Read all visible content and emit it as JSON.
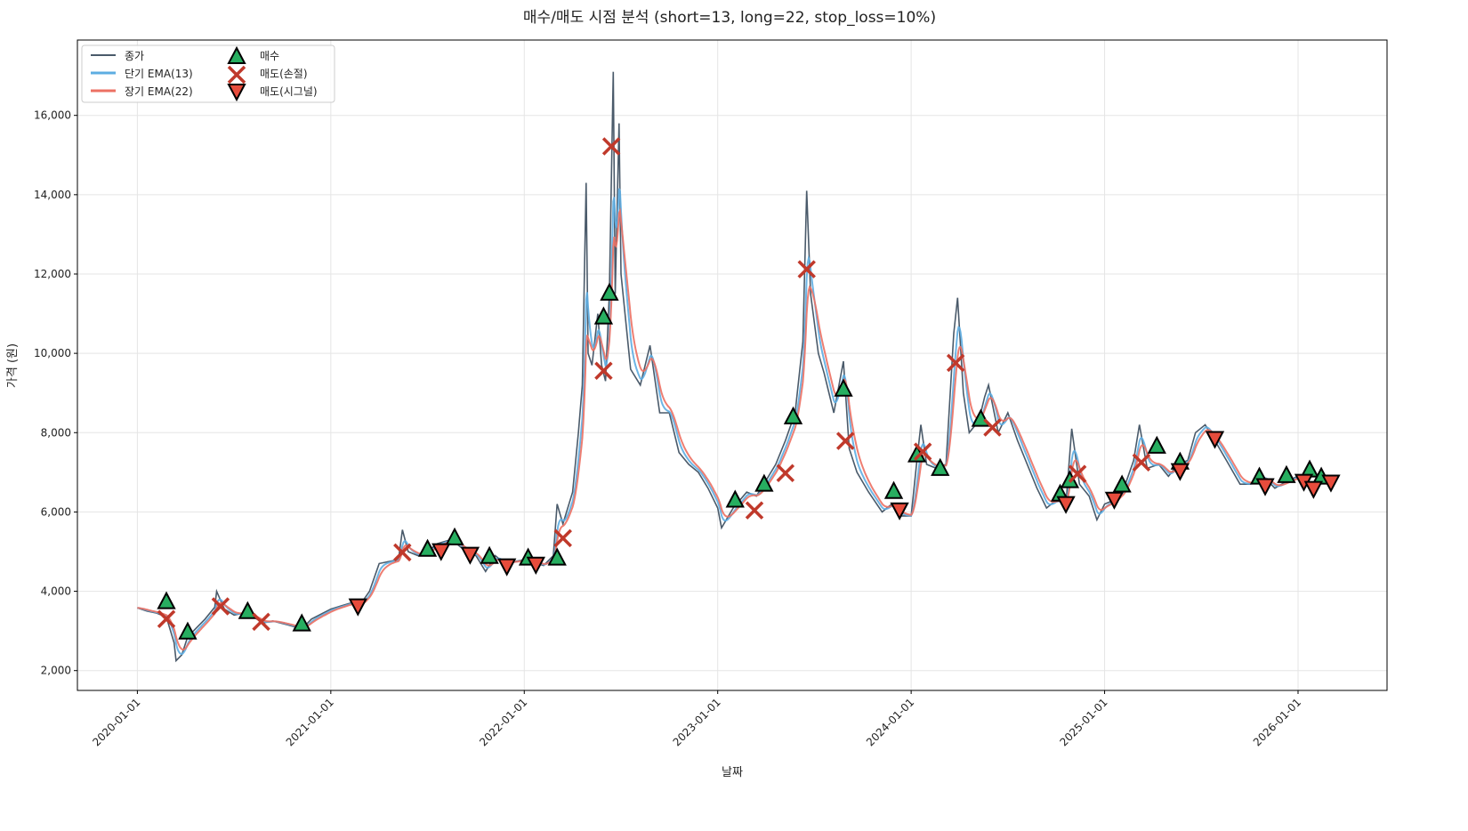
{
  "chart_data": {
    "type": "line",
    "title": "매수/매도 시점 분석 (short=13, long=22, stop_loss=10%)",
    "xlabel": "날짜",
    "ylabel": "가격 (원)",
    "xlim": [
      2019.69,
      2026.46
    ],
    "ylim": [
      1500,
      17900
    ],
    "grid": true,
    "legend_position": "top-left",
    "x_ticks": [
      {
        "value": 2020,
        "label": "2020-01-01"
      },
      {
        "value": 2021,
        "label": "2021-01-01"
      },
      {
        "value": 2022,
        "label": "2022-01-01"
      },
      {
        "value": 2023,
        "label": "2023-01-01"
      },
      {
        "value": 2024,
        "label": "2024-01-01"
      },
      {
        "value": 2025,
        "label": "2025-01-01"
      },
      {
        "value": 2026,
        "label": "2026-01-01"
      }
    ],
    "y_ticks": [
      {
        "value": 2000,
        "label": "2,000"
      },
      {
        "value": 4000,
        "label": "4,000"
      },
      {
        "value": 6000,
        "label": "6,000"
      },
      {
        "value": 8000,
        "label": "8,000"
      },
      {
        "value": 10000,
        "label": "10,000"
      },
      {
        "value": 12000,
        "label": "12,000"
      },
      {
        "value": 14000,
        "label": "14,000"
      },
      {
        "value": 16000,
        "label": "16,000"
      }
    ],
    "legend": {
      "close": "종가",
      "ema_short": "단기 EMA(13)",
      "ema_long": "장기 EMA(22)",
      "buy": "매수",
      "sell_stop": "매도(손절)",
      "sell_signal": "매도(시그널)"
    },
    "colors": {
      "close": "#4a5a6a",
      "ema_short": "#5dade2",
      "ema_long": "#ec7063",
      "buy": "#27ae60",
      "sell_stop": "#c0392b",
      "sell_signal": "#e74c3c"
    },
    "ema_spans": {
      "short": 13,
      "long": 22
    },
    "close_series_x_unit": "decimal year",
    "close": [
      [
        2020.0,
        3580
      ],
      [
        2020.05,
        3500
      ],
      [
        2020.1,
        3450
      ],
      [
        2020.15,
        3350
      ],
      [
        2020.19,
        2700
      ],
      [
        2020.2,
        2250
      ],
      [
        2020.23,
        2400
      ],
      [
        2020.26,
        2850
      ],
      [
        2020.3,
        3050
      ],
      [
        2020.35,
        3300
      ],
      [
        2020.4,
        3600
      ],
      [
        2020.41,
        4000
      ],
      [
        2020.45,
        3550
      ],
      [
        2020.5,
        3400
      ],
      [
        2020.55,
        3450
      ],
      [
        2020.6,
        3350
      ],
      [
        2020.65,
        3200
      ],
      [
        2020.7,
        3250
      ],
      [
        2020.78,
        3150
      ],
      [
        2020.85,
        3050
      ],
      [
        2020.9,
        3300
      ],
      [
        2021.0,
        3550
      ],
      [
        2021.1,
        3700
      ],
      [
        2021.15,
        3650
      ],
      [
        2021.2,
        4000
      ],
      [
        2021.25,
        4700
      ],
      [
        2021.3,
        4750
      ],
      [
        2021.35,
        4800
      ],
      [
        2021.37,
        5550
      ],
      [
        2021.4,
        5000
      ],
      [
        2021.45,
        4900
      ],
      [
        2021.5,
        5000
      ],
      [
        2021.55,
        5200
      ],
      [
        2021.62,
        5300
      ],
      [
        2021.65,
        5200
      ],
      [
        2021.7,
        5000
      ],
      [
        2021.75,
        4900
      ],
      [
        2021.8,
        4500
      ],
      [
        2021.85,
        4900
      ],
      [
        2021.9,
        4700
      ],
      [
        2022.0,
        4800
      ],
      [
        2022.1,
        4650
      ],
      [
        2022.15,
        4900
      ],
      [
        2022.17,
        6200
      ],
      [
        2022.2,
        5700
      ],
      [
        2022.25,
        6500
      ],
      [
        2022.28,
        8000
      ],
      [
        2022.3,
        9200
      ],
      [
        2022.32,
        14300
      ],
      [
        2022.33,
        10000
      ],
      [
        2022.35,
        9700
      ],
      [
        2022.38,
        11000
      ],
      [
        2022.4,
        9700
      ],
      [
        2022.42,
        9300
      ],
      [
        2022.44,
        11500
      ],
      [
        2022.46,
        17100
      ],
      [
        2022.47,
        11500
      ],
      [
        2022.49,
        15800
      ],
      [
        2022.5,
        12000
      ],
      [
        2022.55,
        9600
      ],
      [
        2022.6,
        9200
      ],
      [
        2022.65,
        10200
      ],
      [
        2022.7,
        8500
      ],
      [
        2022.75,
        8500
      ],
      [
        2022.8,
        7500
      ],
      [
        2022.85,
        7200
      ],
      [
        2022.9,
        7000
      ],
      [
        2022.95,
        6600
      ],
      [
        2023.0,
        6100
      ],
      [
        2023.02,
        5600
      ],
      [
        2023.08,
        6100
      ],
      [
        2023.15,
        6500
      ],
      [
        2023.2,
        6400
      ],
      [
        2023.25,
        6800
      ],
      [
        2023.3,
        7200
      ],
      [
        2023.35,
        7800
      ],
      [
        2023.4,
        8500
      ],
      [
        2023.44,
        10300
      ],
      [
        2023.46,
        14100
      ],
      [
        2023.48,
        11500
      ],
      [
        2023.52,
        10000
      ],
      [
        2023.55,
        9500
      ],
      [
        2023.6,
        8500
      ],
      [
        2023.65,
        9800
      ],
      [
        2023.68,
        7600
      ],
      [
        2023.72,
        7000
      ],
      [
        2023.78,
        6500
      ],
      [
        2023.85,
        6000
      ],
      [
        2023.9,
        6200
      ],
      [
        2023.95,
        5900
      ],
      [
        2024.0,
        5900
      ],
      [
        2024.03,
        7300
      ],
      [
        2024.05,
        8200
      ],
      [
        2024.08,
        7200
      ],
      [
        2024.13,
        7100
      ],
      [
        2024.18,
        7200
      ],
      [
        2024.22,
        10500
      ],
      [
        2024.24,
        11400
      ],
      [
        2024.27,
        9000
      ],
      [
        2024.3,
        8000
      ],
      [
        2024.35,
        8300
      ],
      [
        2024.38,
        8900
      ],
      [
        2024.4,
        9200
      ],
      [
        2024.45,
        8000
      ],
      [
        2024.5,
        8500
      ],
      [
        2024.55,
        7800
      ],
      [
        2024.6,
        7200
      ],
      [
        2024.65,
        6600
      ],
      [
        2024.7,
        6100
      ],
      [
        2024.75,
        6300
      ],
      [
        2024.8,
        6200
      ],
      [
        2024.83,
        8100
      ],
      [
        2024.87,
        6700
      ],
      [
        2024.92,
        6400
      ],
      [
        2024.96,
        5800
      ],
      [
        2025.0,
        6200
      ],
      [
        2025.05,
        6300
      ],
      [
        2025.1,
        6600
      ],
      [
        2025.15,
        7300
      ],
      [
        2025.18,
        8200
      ],
      [
        2025.22,
        7100
      ],
      [
        2025.28,
        7200
      ],
      [
        2025.33,
        6900
      ],
      [
        2025.38,
        7200
      ],
      [
        2025.43,
        7300
      ],
      [
        2025.47,
        8000
      ],
      [
        2025.52,
        8200
      ],
      [
        2025.57,
        7800
      ],
      [
        2025.63,
        7300
      ],
      [
        2025.7,
        6700
      ],
      [
        2025.75,
        6700
      ],
      [
        2025.82,
        6900
      ],
      [
        2025.88,
        6600
      ],
      [
        2025.95,
        6800
      ],
      [
        2026.0,
        6900
      ],
      [
        2026.05,
        6700
      ],
      [
        2026.1,
        6700
      ],
      [
        2026.17,
        6800
      ]
    ],
    "buy_points": [
      [
        2020.15,
        3730
      ],
      [
        2020.26,
        2965
      ],
      [
        2020.57,
        3480
      ],
      [
        2020.85,
        3170
      ],
      [
        2021.5,
        5050
      ],
      [
        2021.64,
        5340
      ],
      [
        2021.82,
        4870
      ],
      [
        2022.02,
        4830
      ],
      [
        2022.17,
        4830
      ],
      [
        2022.41,
        10910
      ],
      [
        2022.44,
        11510
      ],
      [
        2023.09,
        6290
      ],
      [
        2023.24,
        6690
      ],
      [
        2023.39,
        8390
      ],
      [
        2023.65,
        9090
      ],
      [
        2023.91,
        6510
      ],
      [
        2024.03,
        7430
      ],
      [
        2024.15,
        7090
      ],
      [
        2024.36,
        8330
      ],
      [
        2024.77,
        6440
      ],
      [
        2024.82,
        6780
      ],
      [
        2025.09,
        6670
      ],
      [
        2025.27,
        7650
      ],
      [
        2025.39,
        7250
      ],
      [
        2025.8,
        6870
      ],
      [
        2025.94,
        6910
      ],
      [
        2026.06,
        7050
      ],
      [
        2026.12,
        6870
      ]
    ],
    "sell_stop_points": [
      [
        2020.15,
        3300
      ],
      [
        2020.43,
        3620
      ],
      [
        2020.64,
        3230
      ],
      [
        2021.37,
        4980
      ],
      [
        2022.2,
        5340
      ],
      [
        2022.41,
        9560
      ],
      [
        2022.45,
        15220
      ],
      [
        2023.19,
        6040
      ],
      [
        2023.35,
        6980
      ],
      [
        2023.46,
        12120
      ],
      [
        2023.66,
        7790
      ],
      [
        2024.06,
        7520
      ],
      [
        2024.23,
        9760
      ],
      [
        2024.42,
        8130
      ],
      [
        2024.86,
        6960
      ],
      [
        2025.19,
        7250
      ]
    ],
    "sell_signal_points": [
      [
        2021.14,
        3640
      ],
      [
        2021.57,
        5030
      ],
      [
        2021.72,
        4940
      ],
      [
        2021.91,
        4650
      ],
      [
        2022.06,
        4690
      ],
      [
        2023.94,
        6060
      ],
      [
        2024.8,
        6220
      ],
      [
        2025.05,
        6330
      ],
      [
        2025.39,
        7050
      ],
      [
        2025.57,
        7860
      ],
      [
        2025.83,
        6670
      ],
      [
        2026.03,
        6780
      ],
      [
        2026.08,
        6600
      ],
      [
        2026.17,
        6760
      ]
    ]
  }
}
